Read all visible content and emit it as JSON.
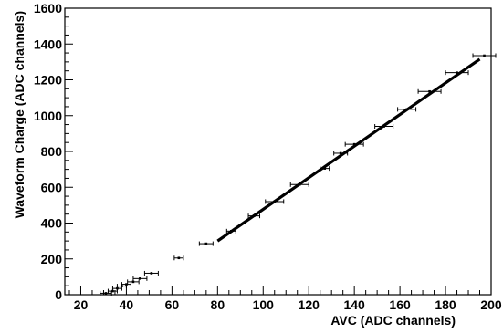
{
  "chart_data": {
    "type": "scatter",
    "xlabel": "AVC (ADC channels)",
    "ylabel": "Waveform Charge (ADC channels)",
    "xlim": [
      13,
      200
    ],
    "ylim": [
      0,
      1600
    ],
    "x_ticks": [
      "20",
      "40",
      "60",
      "80",
      "100",
      "120",
      "140",
      "160",
      "180",
      "200"
    ],
    "y_ticks": [
      "0",
      "200",
      "400",
      "600",
      "800",
      "1000",
      "1200",
      "1400",
      "1600"
    ],
    "grid": false,
    "series": [
      {
        "style": "points-with-x-error-bars",
        "points": [
          {
            "x": 31,
            "y": 8,
            "xerr": 2.5
          },
          {
            "x": 34,
            "y": 20,
            "xerr": 2
          },
          {
            "x": 36,
            "y": 35,
            "xerr": 2
          },
          {
            "x": 38,
            "y": 48,
            "xerr": 2
          },
          {
            "x": 40,
            "y": 58,
            "xerr": 2
          },
          {
            "x": 43,
            "y": 72,
            "xerr": 2.5
          },
          {
            "x": 46,
            "y": 90,
            "xerr": 3
          },
          {
            "x": 51,
            "y": 120,
            "xerr": 3
          },
          {
            "x": 63,
            "y": 205,
            "xerr": 2
          },
          {
            "x": 75,
            "y": 285,
            "xerr": 3
          },
          {
            "x": 86,
            "y": 355,
            "xerr": 2
          },
          {
            "x": 96,
            "y": 440,
            "xerr": 2.5
          },
          {
            "x": 105,
            "y": 520,
            "xerr": 4
          },
          {
            "x": 116,
            "y": 615,
            "xerr": 4
          },
          {
            "x": 127,
            "y": 705,
            "xerr": 2
          },
          {
            "x": 134,
            "y": 790,
            "xerr": 3
          },
          {
            "x": 140,
            "y": 840,
            "xerr": 4
          },
          {
            "x": 153,
            "y": 940,
            "xerr": 4
          },
          {
            "x": 163,
            "y": 1035,
            "xerr": 4
          },
          {
            "x": 173,
            "y": 1135,
            "xerr": 5
          },
          {
            "x": 185,
            "y": 1240,
            "xerr": 5
          },
          {
            "x": 197,
            "y": 1335,
            "xerr": 5
          }
        ]
      },
      {
        "style": "fit-line",
        "x": [
          80,
          195
        ],
        "y": [
          300,
          1315
        ]
      }
    ]
  }
}
